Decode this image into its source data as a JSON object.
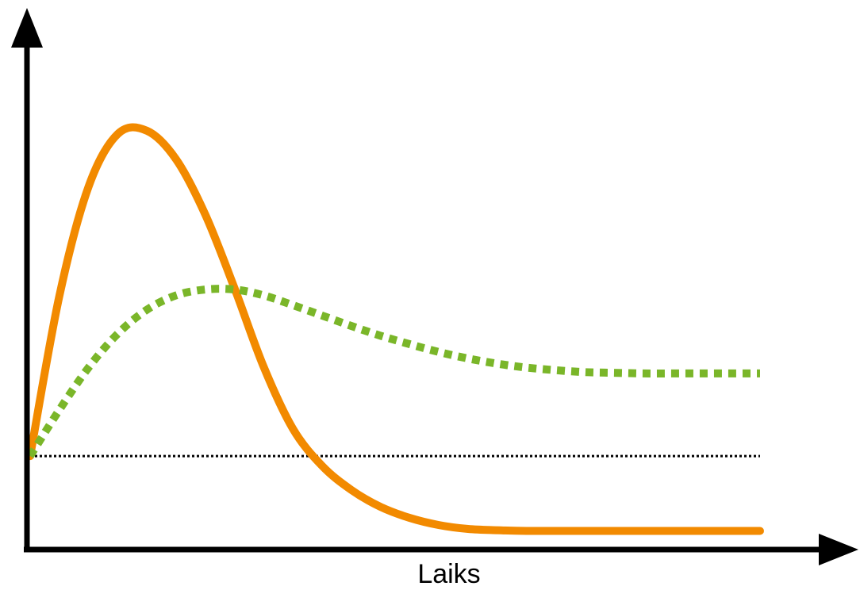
{
  "chart_data": {
    "type": "line",
    "xlabel": "Laiks",
    "ylabel": "",
    "xlim": [
      0,
      10
    ],
    "ylim": [
      -1.4,
      6.4
    ],
    "grid": false,
    "axis_ticks": false,
    "baseline": {
      "y": 0,
      "style": "dotted",
      "color": "#000000"
    },
    "series": [
      {
        "style": "solid",
        "color": "#F28A00",
        "x": [
          0,
          0.4,
          0.8,
          1.2,
          1.6,
          2.0,
          2.4,
          2.8,
          3.2,
          3.6,
          4.0,
          4.4,
          4.8,
          5.2,
          5.6,
          6.0,
          6.4,
          6.8,
          7.2,
          7.6,
          8.0,
          8.4,
          8.8,
          9.2,
          9.6,
          10
        ],
        "y": [
          0,
          2.46,
          4.14,
          4.95,
          5.0,
          4.56,
          3.71,
          2.58,
          1.37,
          0.42,
          -0.15,
          -0.52,
          -0.78,
          -0.95,
          -1.06,
          -1.12,
          -1.14,
          -1.15,
          -1.15,
          -1.15,
          -1.15,
          -1.15,
          -1.15,
          -1.15,
          -1.15,
          -1.15
        ]
      },
      {
        "style": "dotted",
        "color": "#7AB629",
        "x": [
          0,
          0.4,
          0.8,
          1.2,
          1.6,
          2.0,
          2.4,
          2.8,
          3.2,
          3.6,
          4.0,
          4.4,
          4.8,
          5.2,
          5.6,
          6.0,
          6.4,
          6.8,
          7.2,
          7.6,
          8.0,
          8.4,
          8.8,
          9.2,
          9.6,
          10
        ],
        "y": [
          0,
          0.71,
          1.36,
          1.88,
          2.25,
          2.47,
          2.56,
          2.56,
          2.47,
          2.32,
          2.16,
          2.0,
          1.85,
          1.72,
          1.6,
          1.5,
          1.42,
          1.36,
          1.32,
          1.29,
          1.28,
          1.27,
          1.27,
          1.27,
          1.27,
          1.27
        ]
      }
    ]
  }
}
